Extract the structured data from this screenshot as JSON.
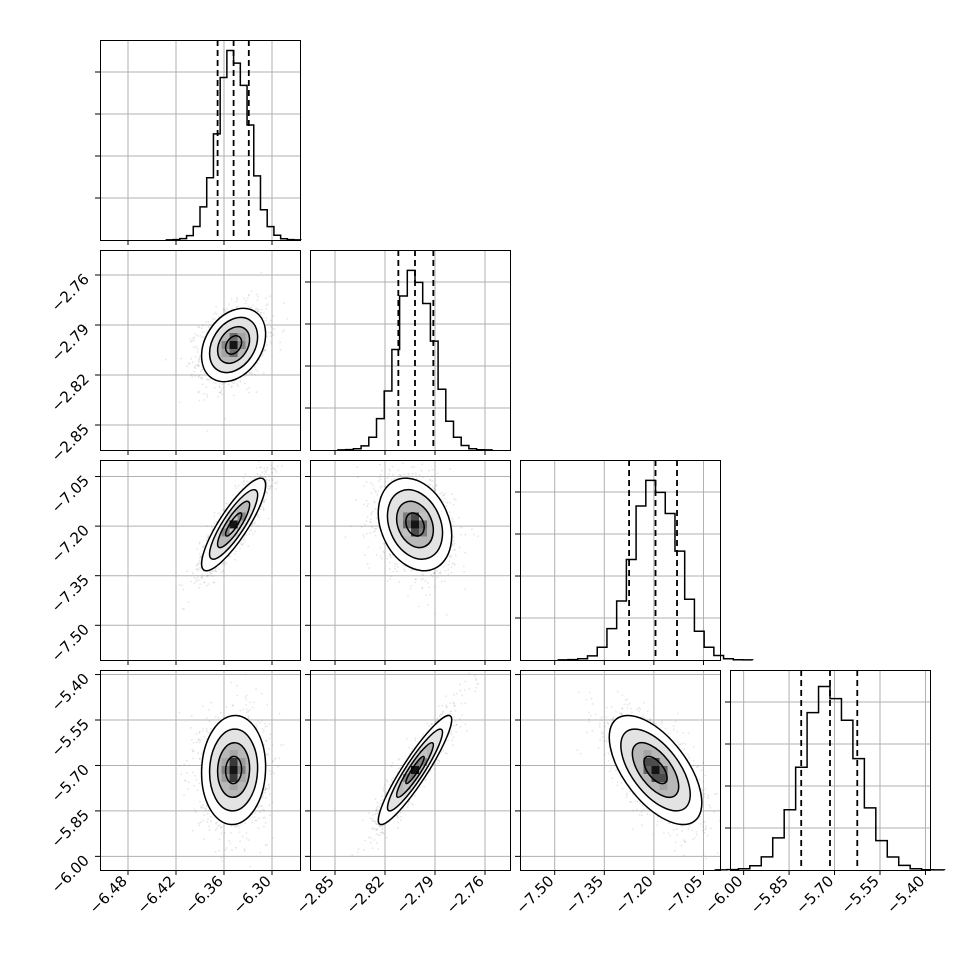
{
  "chart_data": {
    "type": "corner",
    "parameters": [
      {
        "name": "",
        "range": [
          -6.515,
          -6.265
        ],
        "ticks": [
          "-6.48",
          "-6.42",
          "-6.36",
          "-6.30"
        ],
        "tick_values": [
          -6.48,
          -6.42,
          -6.36,
          -6.3
        ],
        "quantiles": [
          -6.368,
          -6.348,
          -6.329
        ],
        "median": -6.348,
        "sigma": 0.02,
        "hist_max": 0.95
      },
      {
        "name": "",
        "range": [
          -2.865,
          -2.745
        ],
        "ticks": [
          "-2.85",
          "-2.82",
          "-2.79",
          "-2.76"
        ],
        "tick_values": [
          -2.85,
          -2.82,
          -2.79,
          -2.76
        ],
        "quantiles": [
          -2.812,
          -2.802,
          -2.791
        ],
        "median": -2.802,
        "sigma": 0.011,
        "hist_max": 0.9
      },
      {
        "name": "",
        "range": [
          -7.605,
          -7.0
        ],
        "ticks": [
          "-7.50",
          "-7.35",
          "-7.20",
          "-7.05"
        ],
        "tick_values": [
          -7.5,
          -7.35,
          -7.2,
          -7.05
        ],
        "quantiles": [
          -7.275,
          -7.195,
          -7.13
        ],
        "median": -7.195,
        "sigma": 0.07,
        "hist_max": 0.9
      },
      {
        "name": "",
        "range": [
          -6.045,
          -5.385
        ],
        "ticks": [
          "-6.00",
          "-5.85",
          "-5.70",
          "-5.55",
          "-5.40"
        ],
        "tick_values": [
          -6.0,
          -5.85,
          -5.7,
          -5.55,
          -5.4
        ],
        "quantiles": [
          -5.81,
          -5.715,
          -5.625
        ],
        "median": -5.715,
        "sigma": 0.09,
        "hist_max": 0.92
      }
    ],
    "pairs": [
      {
        "row": 1,
        "col": 0,
        "correlation": 0.3
      },
      {
        "row": 2,
        "col": 0,
        "correlation": 0.85
      },
      {
        "row": 2,
        "col": 1,
        "correlation": -0.25
      },
      {
        "row": 3,
        "col": 0,
        "correlation": 0.05
      },
      {
        "row": 3,
        "col": 1,
        "correlation": 0.92
      },
      {
        "row": 3,
        "col": 2,
        "correlation": -0.6
      }
    ],
    "contour_levels_sigma": [
      0.5,
      1.0,
      1.5,
      2.0
    ],
    "histogram_bins": 20,
    "grid": true,
    "title": "",
    "quantile_style": "dashed"
  }
}
